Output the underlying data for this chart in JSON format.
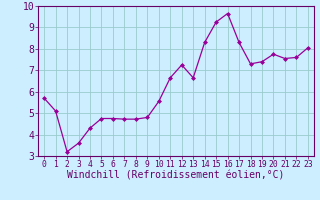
{
  "x": [
    0,
    1,
    2,
    3,
    4,
    5,
    6,
    7,
    8,
    9,
    10,
    11,
    12,
    13,
    14,
    15,
    16,
    17,
    18,
    19,
    20,
    21,
    22,
    23
  ],
  "y": [
    5.7,
    5.1,
    3.2,
    3.6,
    4.3,
    4.75,
    4.75,
    4.72,
    4.72,
    4.8,
    5.55,
    6.65,
    7.25,
    6.65,
    8.3,
    9.25,
    9.65,
    8.3,
    7.3,
    7.4,
    7.75,
    7.55,
    7.6,
    8.05
  ],
  "line_color": "#990099",
  "marker": "D",
  "marker_size": 2.0,
  "bg_color": "#cceeff",
  "grid_color": "#99cccc",
  "xlabel": "Windchill (Refroidissement éolien,°C)",
  "ylim": [
    3,
    10
  ],
  "xlim": [
    -0.5,
    23.5
  ],
  "yticks": [
    3,
    4,
    5,
    6,
    7,
    8,
    9,
    10
  ],
  "xtick_labels": [
    "0",
    "1",
    "2",
    "3",
    "4",
    "5",
    "6",
    "7",
    "8",
    "9",
    "10",
    "11",
    "12",
    "13",
    "14",
    "15",
    "16",
    "17",
    "18",
    "19",
    "20",
    "21",
    "22",
    "23"
  ],
  "spine_color": "#660066",
  "tick_color": "#660066",
  "label_color": "#660066",
  "xlabel_fontsize": 7.0,
  "ytick_fontsize": 7.0,
  "xtick_fontsize": 5.8,
  "linewidth": 0.9
}
